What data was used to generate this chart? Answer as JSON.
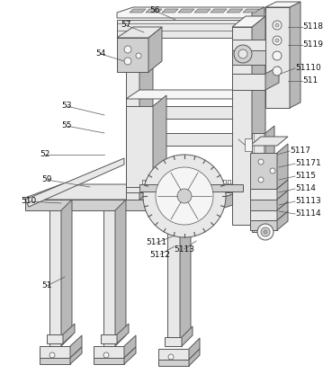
{
  "bg_color": "#ffffff",
  "lc": "#555555",
  "fc_light": "#e8e8e8",
  "fc_mid": "#d0d0d0",
  "fc_dark": "#b8b8b8",
  "fc_white": "#f5f5f5",
  "lw": 0.7,
  "figsize": [
    3.59,
    4.16
  ],
  "dpi": 100,
  "labels": [
    [
      "56",
      172,
      12,
      "center"
    ],
    [
      "57",
      140,
      28,
      "center"
    ],
    [
      "54",
      112,
      60,
      "center"
    ],
    [
      "53",
      74,
      118,
      "center"
    ],
    [
      "55",
      74,
      140,
      "center"
    ],
    [
      "52",
      50,
      172,
      "center"
    ],
    [
      "59",
      52,
      200,
      "center"
    ],
    [
      "510",
      32,
      224,
      "center"
    ],
    [
      "51",
      52,
      318,
      "center"
    ],
    [
      "5111",
      174,
      270,
      "center"
    ],
    [
      "5112",
      178,
      283,
      "center"
    ],
    [
      "5113",
      205,
      277,
      "center"
    ],
    [
      "5118",
      336,
      30,
      "left"
    ],
    [
      "5119",
      336,
      50,
      "left"
    ],
    [
      "51110",
      328,
      76,
      "left"
    ],
    [
      "511",
      336,
      90,
      "left"
    ],
    [
      "5117",
      322,
      168,
      "left"
    ],
    [
      "51171",
      328,
      182,
      "left"
    ],
    [
      "5115",
      328,
      196,
      "left"
    ],
    [
      "5114",
      328,
      210,
      "left"
    ],
    [
      "51113",
      328,
      224,
      "left"
    ],
    [
      "51114",
      328,
      238,
      "left"
    ]
  ],
  "leader_lines": [
    [
      172,
      12,
      195,
      22
    ],
    [
      140,
      28,
      160,
      36
    ],
    [
      112,
      60,
      138,
      68
    ],
    [
      74,
      118,
      116,
      128
    ],
    [
      74,
      140,
      116,
      148
    ],
    [
      50,
      172,
      116,
      172
    ],
    [
      52,
      200,
      100,
      208
    ],
    [
      32,
      224,
      68,
      226
    ],
    [
      52,
      318,
      72,
      308
    ],
    [
      174,
      270,
      194,
      262
    ],
    [
      178,
      283,
      194,
      274
    ],
    [
      205,
      277,
      218,
      268
    ],
    [
      336,
      30,
      320,
      30
    ],
    [
      336,
      50,
      320,
      50
    ],
    [
      328,
      76,
      312,
      82
    ],
    [
      336,
      90,
      320,
      90
    ],
    [
      322,
      168,
      308,
      172
    ],
    [
      328,
      182,
      310,
      186
    ],
    [
      328,
      196,
      310,
      200
    ],
    [
      328,
      210,
      310,
      214
    ],
    [
      328,
      224,
      310,
      228
    ],
    [
      328,
      238,
      310,
      235
    ]
  ]
}
